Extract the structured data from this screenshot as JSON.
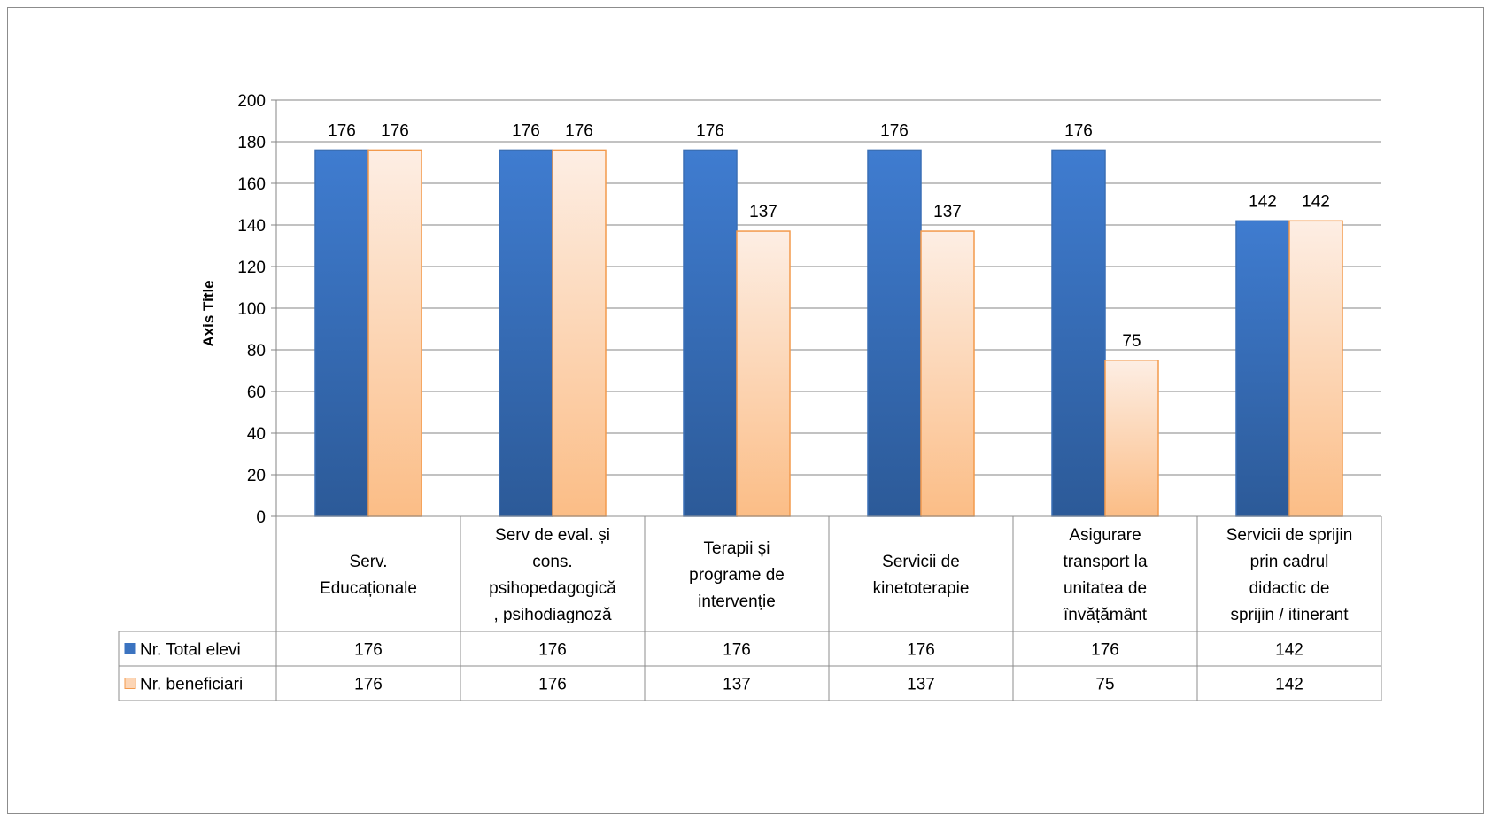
{
  "chart_data": {
    "type": "bar",
    "ylabel": "Axis Title",
    "ylim": [
      0,
      200
    ],
    "yticks": [
      "0",
      "20",
      "40",
      "60",
      "80",
      "100",
      "120",
      "140",
      "160",
      "180",
      "200"
    ],
    "categories": [
      [
        "Serv.",
        "Educaționale"
      ],
      [
        "Serv de eval. și",
        "cons.",
        "psihopedagogică",
        ", psihodiagnoză"
      ],
      [
        "Terapii și",
        "programe de",
        "intervenție"
      ],
      [
        "Servicii de",
        "kinetoterapie"
      ],
      [
        "Asigurare",
        "transport la",
        "unitatea de",
        "învățământ"
      ],
      [
        "Servicii de sprijin",
        "prin cadrul",
        "didactic de",
        "sprijin / itinerant"
      ]
    ],
    "series": [
      {
        "name": "Nr. Total elevi",
        "values": [
          176,
          176,
          176,
          176,
          176,
          142
        ],
        "color": "#3b73c0"
      },
      {
        "name": "Nr. beneficiari",
        "values": [
          176,
          176,
          137,
          137,
          75,
          142
        ],
        "color": "#fbbf8a"
      }
    ],
    "data_labels_visible": [
      [
        true,
        true,
        true,
        true,
        true,
        true
      ],
      [
        true,
        true,
        true,
        true,
        true,
        true
      ]
    ],
    "data_table": true,
    "grid": true,
    "legend": "data-table"
  }
}
